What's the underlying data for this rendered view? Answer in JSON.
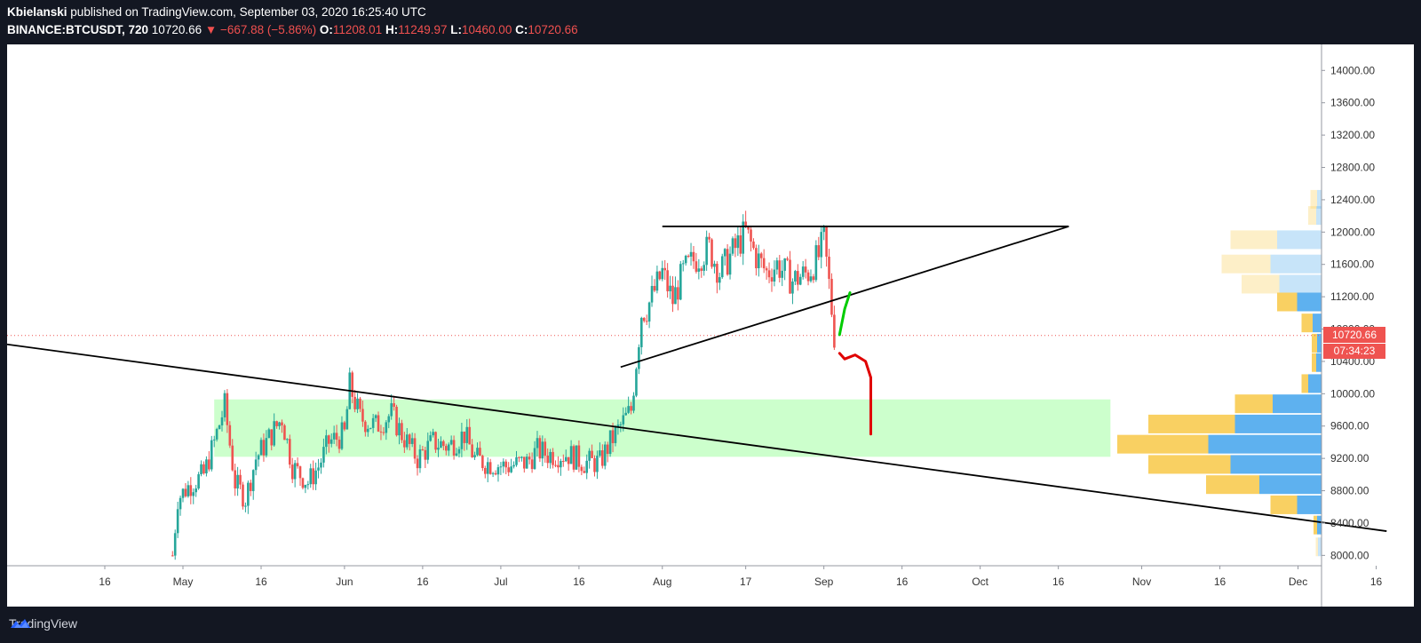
{
  "header": {
    "author": "Kbielanski",
    "published_text": "published on TradingView.com, September 03, 2020 16:25:40 UTC",
    "symbol": "BINANCE:BTCUSDT, 720",
    "last": "10720.66",
    "change": "−667.88 (−5.86%)",
    "o_label": "O:",
    "o": "11208.01",
    "h_label": "H:",
    "h": "11249.97",
    "l_label": "L:",
    "l": "10460.00",
    "c_label": "C:",
    "c": "10720.66"
  },
  "price_badge": "10720.66",
  "countdown_badge": "07:34:23",
  "footer": {
    "brand": "TradingView"
  },
  "colors": {
    "up": "#26a69a",
    "down": "#ef5350",
    "zone": "#ccffcc",
    "vp_buy": "#5eb1ef",
    "vp_sell": "#f9d062",
    "badge": "#ef5350"
  },
  "chart_data": {
    "type": "candlestick",
    "ylim": [
      7850,
      14300
    ],
    "y_ticks": [
      "14000.00",
      "13600.00",
      "13200.00",
      "12800.00",
      "12400.00",
      "12000.00",
      "11600.00",
      "11200.00",
      "10800.00",
      "10400.00",
      "10000.00",
      "9600.00",
      "9200.00",
      "8800.00",
      "8400.00",
      "8000.00"
    ],
    "x_ticks": [
      "16",
      "May",
      "16",
      "Jun",
      "16",
      "Jul",
      "16",
      "Aug",
      "17",
      "Sep",
      "16",
      "Oct",
      "16",
      "Nov",
      "16",
      "Dec",
      "16"
    ],
    "current_price": 10720.66,
    "price_path": [
      [
        "2020-04-29",
        8000
      ],
      [
        "2020-04-30",
        8700
      ],
      [
        "2020-05-02",
        8850
      ],
      [
        "2020-05-05",
        9000
      ],
      [
        "2020-05-07",
        9400
      ],
      [
        "2020-05-09",
        9850
      ],
      [
        "2020-05-11",
        8900
      ],
      [
        "2020-05-13",
        8700
      ],
      [
        "2020-05-15",
        9200
      ],
      [
        "2020-05-18",
        9500
      ],
      [
        "2020-05-20",
        9700
      ],
      [
        "2020-05-22",
        9100
      ],
      [
        "2020-05-25",
        8900
      ],
      [
        "2020-05-27",
        9100
      ],
      [
        "2020-05-29",
        9400
      ],
      [
        "2020-06-01",
        9500
      ],
      [
        "2020-06-02",
        10100
      ],
      [
        "2020-06-04",
        9700
      ],
      [
        "2020-06-07",
        9600
      ],
      [
        "2020-06-10",
        9750
      ],
      [
        "2020-06-12",
        9500
      ],
      [
        "2020-06-15",
        9200
      ],
      [
        "2020-06-18",
        9400
      ],
      [
        "2020-06-21",
        9350
      ],
      [
        "2020-06-24",
        9500
      ],
      [
        "2020-06-26",
        9200
      ],
      [
        "2020-06-28",
        9150
      ],
      [
        "2020-07-02",
        9100
      ],
      [
        "2020-07-06",
        9150
      ],
      [
        "2020-07-08",
        9300
      ],
      [
        "2020-07-10",
        9250
      ],
      [
        "2020-07-14",
        9250
      ],
      [
        "2020-07-17",
        9150
      ],
      [
        "2020-07-20",
        9150
      ],
      [
        "2020-07-22",
        9400
      ],
      [
        "2020-07-24",
        9600
      ],
      [
        "2020-07-26",
        9800
      ],
      [
        "2020-07-27",
        10400
      ],
      [
        "2020-07-28",
        11000
      ],
      [
        "2020-07-29",
        11050
      ],
      [
        "2020-08-01",
        11500
      ],
      [
        "2020-08-03",
        11150
      ],
      [
        "2020-08-05",
        11500
      ],
      [
        "2020-08-07",
        11650
      ],
      [
        "2020-08-10",
        11800
      ],
      [
        "2020-08-12",
        11500
      ],
      [
        "2020-08-14",
        11700
      ],
      [
        "2020-08-17",
        12000
      ],
      [
        "2020-08-19",
        11700
      ],
      [
        "2020-08-21",
        11500
      ],
      [
        "2020-08-23",
        11600
      ],
      [
        "2020-08-26",
        11400
      ],
      [
        "2020-08-29",
        11500
      ],
      [
        "2020-08-31",
        11700
      ],
      [
        "2020-09-01",
        11900
      ],
      [
        "2020-09-02",
        11350
      ],
      [
        "2020-09-03",
        10720
      ]
    ],
    "zone": {
      "from": "2020-05-07",
      "to": "2020-10-26",
      "low": 9220,
      "high": 9930
    },
    "trendlines": [
      {
        "name": "resistance",
        "from": [
          "2020-08-01",
          12070
        ],
        "to": [
          "2020-10-18",
          12070
        ]
      },
      {
        "name": "rising-support",
        "from": [
          "2020-07-24",
          10330
        ],
        "to": [
          "2020-10-18",
          12070
        ]
      },
      {
        "name": "long-downtrend",
        "from": [
          "2020-03-18",
          10700
        ],
        "to": [
          "2020-12-18",
          8300
        ]
      }
    ],
    "projections": [
      {
        "color": "#00cc00",
        "points": [
          [
            "2020-09-04",
            10730
          ],
          [
            "2020-09-05",
            11050
          ],
          [
            "2020-09-06",
            11250
          ]
        ]
      },
      {
        "color": "#e00000",
        "points": [
          [
            "2020-09-04",
            10500
          ],
          [
            "2020-09-05",
            10430
          ],
          [
            "2020-09-07",
            10480
          ],
          [
            "2020-09-09",
            10400
          ],
          [
            "2020-09-10",
            10200
          ],
          [
            "2020-09-10",
            9500
          ]
        ]
      }
    ],
    "volume_profile": [
      {
        "price": 12400,
        "buy": 0.1,
        "sell": 0.15,
        "faded": true
      },
      {
        "price": 12200,
        "buy": 0.12,
        "sell": 0.18,
        "faded": true
      },
      {
        "price": 11900,
        "buy": 1.0,
        "sell": 1.05,
        "faded": true
      },
      {
        "price": 11600,
        "buy": 1.15,
        "sell": 1.1,
        "faded": true
      },
      {
        "price": 11350,
        "buy": 0.95,
        "sell": 0.85,
        "faded": true
      },
      {
        "price": 11130,
        "buy": 0.55,
        "sell": 0.45
      },
      {
        "price": 10870,
        "buy": 0.2,
        "sell": 0.25
      },
      {
        "price": 10620,
        "buy": 0.1,
        "sell": 0.12
      },
      {
        "price": 10380,
        "buy": 0.12,
        "sell": 0.1
      },
      {
        "price": 10120,
        "buy": 0.3,
        "sell": 0.15
      },
      {
        "price": 9870,
        "buy": 1.1,
        "sell": 0.85
      },
      {
        "price": 9620,
        "buy": 1.95,
        "sell": 1.95
      },
      {
        "price": 9370,
        "buy": 2.55,
        "sell": 2.05
      },
      {
        "price": 9120,
        "buy": 2.05,
        "sell": 1.85
      },
      {
        "price": 8870,
        "buy": 1.4,
        "sell": 1.2
      },
      {
        "price": 8620,
        "buy": 0.55,
        "sell": 0.6
      },
      {
        "price": 8370,
        "buy": 0.1,
        "sell": 0.08
      },
      {
        "price": 8100,
        "buy": 0.08,
        "sell": 0.05,
        "faded": true
      }
    ]
  }
}
